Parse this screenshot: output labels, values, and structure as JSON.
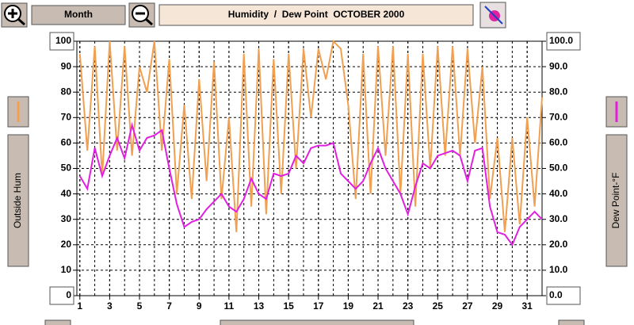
{
  "chart_data": {
    "type": "line",
    "title": "Humidity  /  Dew Point  OCTOBER 2000",
    "period": "Month",
    "x": [
      1,
      1.5,
      2,
      2.5,
      3,
      3.5,
      4,
      4.5,
      5,
      5.5,
      6,
      6.5,
      7,
      7.5,
      8,
      8.5,
      9,
      9.5,
      10,
      10.5,
      11,
      11.5,
      12,
      12.5,
      13,
      13.5,
      14,
      14.5,
      15,
      15.5,
      16,
      16.5,
      17,
      17.5,
      18,
      18.5,
      19,
      19.5,
      20,
      20.5,
      21,
      21.5,
      22,
      22.5,
      23,
      23.5,
      24,
      24.5,
      25,
      25.5,
      26,
      26.5,
      27,
      27.5,
      28,
      28.5,
      29,
      29.5,
      30,
      30.5,
      31,
      31.5,
      32
    ],
    "series": [
      {
        "name": "Outside Hum",
        "color": "#f0a050",
        "values": [
          95,
          57,
          98,
          47,
          100,
          57,
          98,
          55,
          90,
          80,
          100,
          57,
          93,
          40,
          75,
          38,
          85,
          45,
          92,
          38,
          70,
          25,
          95,
          35,
          97,
          32,
          93,
          40,
          95,
          50,
          97,
          70,
          97,
          85,
          100,
          97,
          75,
          38,
          95,
          40,
          98,
          55,
          98,
          40,
          95,
          35,
          95,
          50,
          98,
          55,
          98,
          55,
          97,
          60,
          90,
          38,
          62,
          25,
          62,
          28,
          70,
          35,
          78
        ]
      },
      {
        "name": "Dew Point-°F",
        "color": "#e020e0",
        "axis": "y2",
        "values": [
          47,
          42,
          58,
          47,
          55,
          62,
          54,
          67,
          57,
          62,
          63,
          65,
          50,
          36,
          27,
          29,
          30,
          34,
          37,
          40,
          35,
          33,
          38,
          46,
          40,
          38,
          48,
          47,
          48,
          55,
          52,
          58,
          59,
          59,
          60,
          48,
          45,
          42,
          45,
          52,
          58,
          50,
          45,
          40,
          32,
          43,
          52,
          50,
          55,
          56,
          57,
          55,
          45,
          57,
          58,
          35,
          25,
          24,
          20,
          27,
          30,
          33,
          30
        ]
      }
    ],
    "xlim": [
      0.8,
      32
    ],
    "xticks": [
      1,
      3,
      5,
      7,
      9,
      11,
      13,
      15,
      17,
      19,
      21,
      23,
      25,
      27,
      29,
      31
    ],
    "ylim": [
      0,
      100
    ],
    "yticks": [
      0,
      10,
      20,
      30,
      40,
      50,
      60,
      70,
      80,
      90,
      100
    ],
    "y2lim": [
      0,
      100
    ],
    "y2ticks": [
      {
        "value": 0,
        "label": "0.0"
      },
      {
        "value": 10,
        "label": "10.0"
      },
      {
        "value": 20,
        "label": "20.0"
      },
      {
        "value": 30,
        "label": "30.0"
      },
      {
        "value": 40,
        "label": "40.0"
      },
      {
        "value": 50,
        "label": "50.0"
      },
      {
        "value": 60,
        "label": "60.0"
      },
      {
        "value": 70,
        "label": "70.0"
      },
      {
        "value": 80,
        "label": "80.0"
      },
      {
        "value": 90,
        "label": "90.0"
      },
      {
        "value": 100,
        "label": "100.0"
      }
    ],
    "grid": true
  }
}
